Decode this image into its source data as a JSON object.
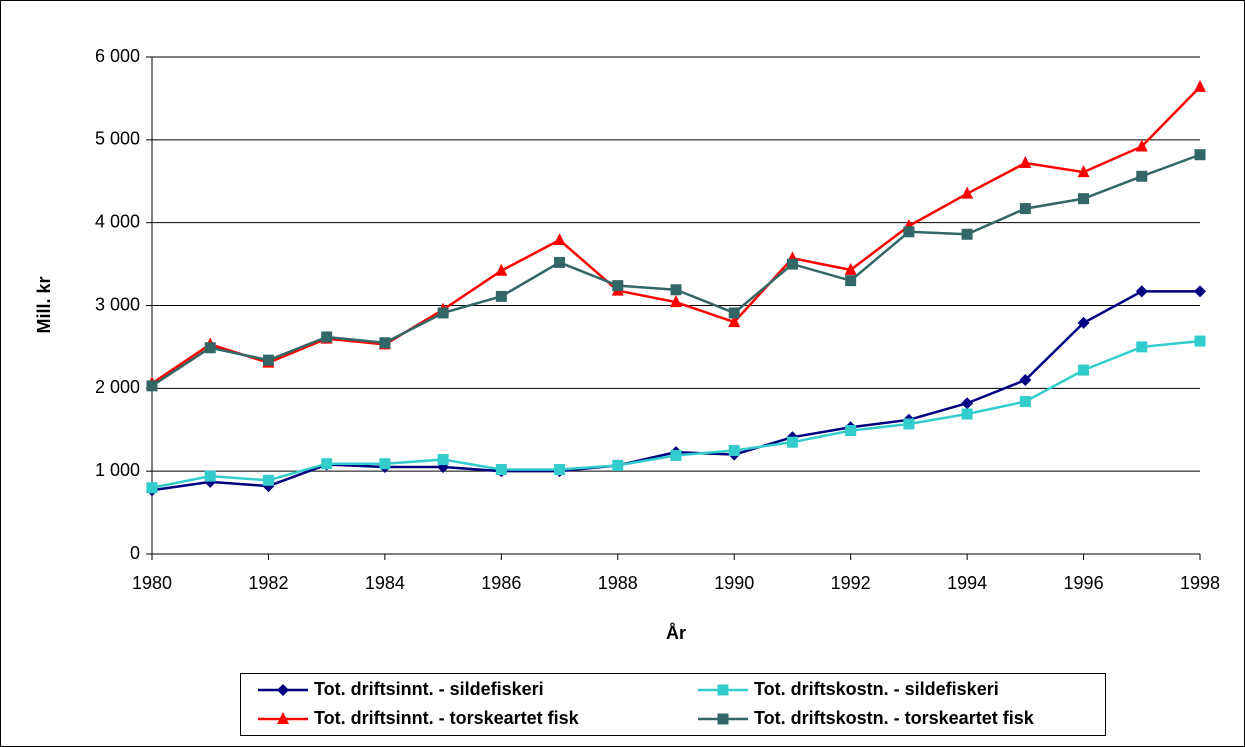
{
  "chart_data": {
    "type": "line",
    "y_label": "Mill. kr",
    "x_label": "År",
    "x": [
      1980,
      1981,
      1982,
      1983,
      1984,
      1985,
      1986,
      1987,
      1988,
      1989,
      1990,
      1991,
      1992,
      1993,
      1994,
      1995,
      1996,
      1997,
      1998
    ],
    "xlim": [
      1980,
      1998
    ],
    "xticks": [
      1980,
      1982,
      1984,
      1986,
      1988,
      1990,
      1992,
      1994,
      1996,
      1998
    ],
    "ylim": [
      0,
      6000
    ],
    "yticks": [
      0,
      {
        "value": 1000,
        "label": "1 000"
      },
      {
        "value": 2000,
        "label": "2 000"
      },
      {
        "value": 3000,
        "label": "3 000"
      },
      {
        "value": 4000,
        "label": "4 000"
      },
      {
        "value": 5000,
        "label": "5 000"
      },
      {
        "value": 6000,
        "label": "6 000"
      }
    ],
    "grid": true,
    "legend": "bottom",
    "series": [
      {
        "name": "Tot. driftsinnt. - sildefiskeri",
        "color": "#000080",
        "marker": "diamond",
        "values": [
          770,
          870,
          820,
          1080,
          1050,
          1050,
          1000,
          1000,
          1070,
          1230,
          1200,
          1410,
          1530,
          1620,
          1820,
          2100,
          2790,
          3170,
          3170
        ]
      },
      {
        "name": "Tot. driftskostn. - sildefiskeri",
        "color": "#33cccc",
        "marker": "square",
        "values": [
          800,
          940,
          890,
          1090,
          1090,
          1140,
          1020,
          1020,
          1070,
          1190,
          1250,
          1350,
          1490,
          1570,
          1690,
          1840,
          2220,
          2500,
          2570
        ]
      },
      {
        "name": "Tot. driftsinnt. - torskeartet fisk",
        "color": "#ff0000",
        "marker": "triangle",
        "values": [
          2060,
          2530,
          2310,
          2600,
          2530,
          2950,
          3420,
          3790,
          3180,
          3040,
          2800,
          3570,
          3430,
          3960,
          4350,
          4720,
          4610,
          4920,
          5640
        ]
      },
      {
        "name": "Tot. driftskostn. - torskeartet fisk",
        "color": "#336666",
        "marker": "square",
        "values": [
          2030,
          2490,
          2340,
          2620,
          2550,
          2910,
          3110,
          3520,
          3240,
          3190,
          2910,
          3500,
          3300,
          3890,
          3860,
          4170,
          4290,
          4560,
          4820
        ]
      }
    ]
  }
}
